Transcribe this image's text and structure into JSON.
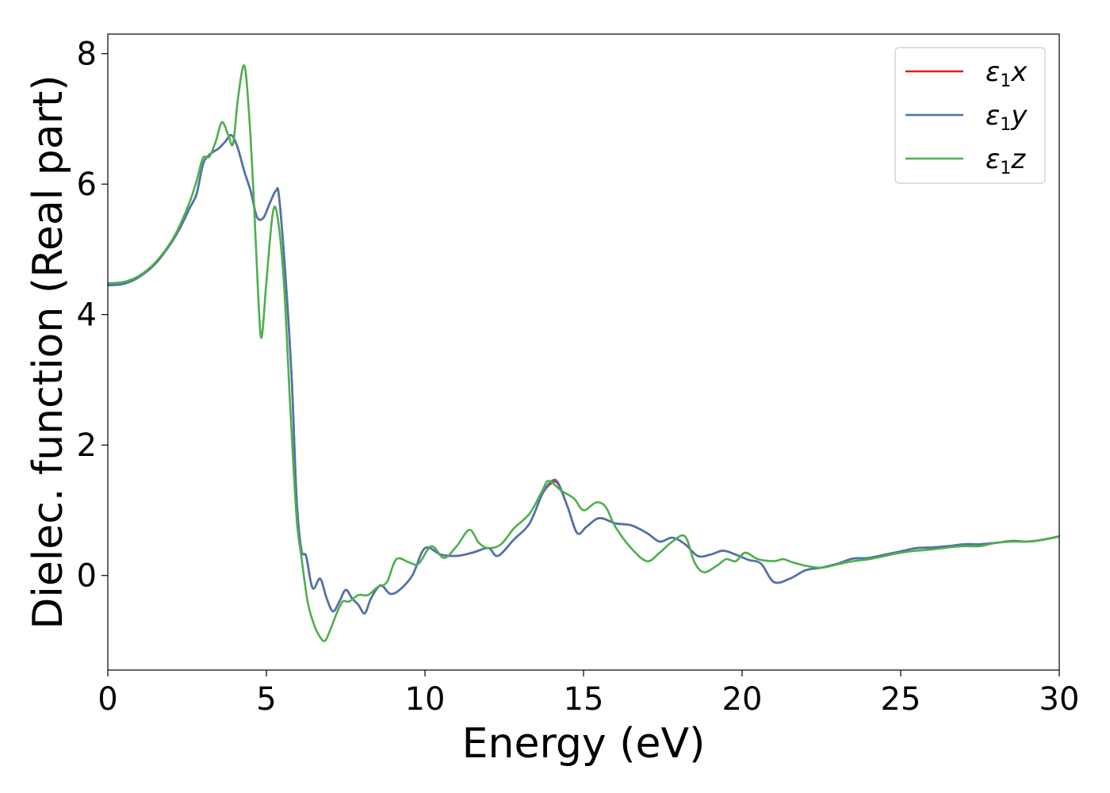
{
  "chart_data": {
    "type": "line",
    "xlabel": "Energy (eV)",
    "ylabel": "Dielec. function (Real part)",
    "xlim": [
      0,
      30
    ],
    "ylim": [
      -1.45,
      8.3
    ],
    "xticks": [
      0,
      5,
      10,
      15,
      20,
      25,
      30
    ],
    "yticks": [
      0,
      2,
      4,
      6,
      8
    ],
    "grid": false,
    "legend_position": "top-right",
    "series": [
      {
        "name": "ε1x",
        "legend": {
          "base": "ε",
          "sub": "1",
          "suffix": "x"
        },
        "color": "#e41a1c",
        "points": [
          [
            0,
            4.45
          ],
          [
            0.5,
            4.47
          ],
          [
            1,
            4.58
          ],
          [
            1.5,
            4.78
          ],
          [
            2,
            5.1
          ],
          [
            2.3,
            5.35
          ],
          [
            2.6,
            5.65
          ],
          [
            2.8,
            5.85
          ],
          [
            3.0,
            6.3
          ],
          [
            3.2,
            6.45
          ],
          [
            3.5,
            6.55
          ],
          [
            3.7,
            6.65
          ],
          [
            3.9,
            6.75
          ],
          [
            4.1,
            6.55
          ],
          [
            4.3,
            6.2
          ],
          [
            4.5,
            5.9
          ],
          [
            4.7,
            5.5
          ],
          [
            4.9,
            5.48
          ],
          [
            5.1,
            5.7
          ],
          [
            5.3,
            5.9
          ],
          [
            5.4,
            5.8
          ],
          [
            5.6,
            4.6
          ],
          [
            5.8,
            3.0
          ],
          [
            5.95,
            1.2
          ],
          [
            6.1,
            0.4
          ],
          [
            6.25,
            0.3
          ],
          [
            6.4,
            -0.1
          ],
          [
            6.5,
            -0.2
          ],
          [
            6.7,
            -0.05
          ],
          [
            6.9,
            -0.35
          ],
          [
            7.1,
            -0.55
          ],
          [
            7.3,
            -0.4
          ],
          [
            7.5,
            -0.22
          ],
          [
            7.7,
            -0.35
          ],
          [
            7.9,
            -0.45
          ],
          [
            8.1,
            -0.58
          ],
          [
            8.3,
            -0.35
          ],
          [
            8.6,
            -0.15
          ],
          [
            8.9,
            -0.28
          ],
          [
            9.2,
            -0.22
          ],
          [
            9.6,
            0.0
          ],
          [
            10.0,
            0.42
          ],
          [
            10.5,
            0.32
          ],
          [
            11.0,
            0.3
          ],
          [
            11.5,
            0.35
          ],
          [
            12.0,
            0.42
          ],
          [
            12.3,
            0.3
          ],
          [
            12.8,
            0.55
          ],
          [
            13.3,
            0.8
          ],
          [
            13.7,
            1.25
          ],
          [
            14.0,
            1.42
          ],
          [
            14.2,
            1.4
          ],
          [
            14.5,
            1.05
          ],
          [
            14.8,
            0.65
          ],
          [
            15.1,
            0.75
          ],
          [
            15.5,
            0.88
          ],
          [
            16.0,
            0.8
          ],
          [
            16.5,
            0.77
          ],
          [
            17.0,
            0.65
          ],
          [
            17.4,
            0.52
          ],
          [
            17.8,
            0.58
          ],
          [
            18.2,
            0.48
          ],
          [
            18.6,
            0.3
          ],
          [
            19.0,
            0.32
          ],
          [
            19.4,
            0.38
          ],
          [
            19.8,
            0.32
          ],
          [
            20.2,
            0.24
          ],
          [
            20.6,
            0.18
          ],
          [
            21.0,
            -0.1
          ],
          [
            21.5,
            -0.05
          ],
          [
            22.0,
            0.08
          ],
          [
            22.5,
            0.12
          ],
          [
            23.0,
            0.18
          ],
          [
            23.5,
            0.26
          ],
          [
            24.0,
            0.27
          ],
          [
            24.5,
            0.32
          ],
          [
            25.0,
            0.37
          ],
          [
            25.5,
            0.42
          ],
          [
            26.0,
            0.43
          ],
          [
            26.5,
            0.45
          ],
          [
            27.0,
            0.48
          ],
          [
            27.5,
            0.48
          ],
          [
            28.0,
            0.5
          ],
          [
            28.5,
            0.53
          ],
          [
            29.0,
            0.52
          ],
          [
            29.5,
            0.55
          ],
          [
            30.0,
            0.6
          ]
        ]
      },
      {
        "name": "ε1y",
        "legend": {
          "base": "ε",
          "sub": "1",
          "suffix": "y"
        },
        "color": "#4a75ad",
        "points": [
          [
            0,
            4.45
          ],
          [
            0.5,
            4.47
          ],
          [
            1,
            4.58
          ],
          [
            1.5,
            4.78
          ],
          [
            2,
            5.1
          ],
          [
            2.3,
            5.35
          ],
          [
            2.6,
            5.65
          ],
          [
            2.8,
            5.85
          ],
          [
            3.0,
            6.3
          ],
          [
            3.2,
            6.45
          ],
          [
            3.5,
            6.55
          ],
          [
            3.7,
            6.65
          ],
          [
            3.9,
            6.75
          ],
          [
            4.1,
            6.55
          ],
          [
            4.3,
            6.2
          ],
          [
            4.5,
            5.9
          ],
          [
            4.7,
            5.5
          ],
          [
            4.9,
            5.48
          ],
          [
            5.1,
            5.7
          ],
          [
            5.3,
            5.9
          ],
          [
            5.4,
            5.8
          ],
          [
            5.6,
            4.6
          ],
          [
            5.8,
            3.0
          ],
          [
            5.95,
            1.2
          ],
          [
            6.1,
            0.4
          ],
          [
            6.25,
            0.3
          ],
          [
            6.4,
            -0.1
          ],
          [
            6.5,
            -0.2
          ],
          [
            6.7,
            -0.05
          ],
          [
            6.9,
            -0.35
          ],
          [
            7.1,
            -0.55
          ],
          [
            7.3,
            -0.4
          ],
          [
            7.5,
            -0.22
          ],
          [
            7.7,
            -0.35
          ],
          [
            7.9,
            -0.45
          ],
          [
            8.1,
            -0.58
          ],
          [
            8.3,
            -0.35
          ],
          [
            8.6,
            -0.15
          ],
          [
            8.9,
            -0.28
          ],
          [
            9.2,
            -0.22
          ],
          [
            9.6,
            0.0
          ],
          [
            10.0,
            0.42
          ],
          [
            10.5,
            0.32
          ],
          [
            11.0,
            0.3
          ],
          [
            11.5,
            0.35
          ],
          [
            12.0,
            0.42
          ],
          [
            12.3,
            0.3
          ],
          [
            12.8,
            0.55
          ],
          [
            13.3,
            0.8
          ],
          [
            13.7,
            1.25
          ],
          [
            14.0,
            1.45
          ],
          [
            14.2,
            1.42
          ],
          [
            14.5,
            1.05
          ],
          [
            14.8,
            0.65
          ],
          [
            15.1,
            0.75
          ],
          [
            15.5,
            0.88
          ],
          [
            16.0,
            0.8
          ],
          [
            16.5,
            0.77
          ],
          [
            17.0,
            0.65
          ],
          [
            17.4,
            0.52
          ],
          [
            17.8,
            0.58
          ],
          [
            18.2,
            0.48
          ],
          [
            18.6,
            0.3
          ],
          [
            19.0,
            0.32
          ],
          [
            19.4,
            0.38
          ],
          [
            19.8,
            0.32
          ],
          [
            20.2,
            0.24
          ],
          [
            20.6,
            0.18
          ],
          [
            21.0,
            -0.1
          ],
          [
            21.5,
            -0.05
          ],
          [
            22.0,
            0.08
          ],
          [
            22.5,
            0.12
          ],
          [
            23.0,
            0.18
          ],
          [
            23.5,
            0.26
          ],
          [
            24.0,
            0.27
          ],
          [
            24.5,
            0.32
          ],
          [
            25.0,
            0.37
          ],
          [
            25.5,
            0.42
          ],
          [
            26.0,
            0.43
          ],
          [
            26.5,
            0.45
          ],
          [
            27.0,
            0.48
          ],
          [
            27.5,
            0.48
          ],
          [
            28.0,
            0.5
          ],
          [
            28.5,
            0.53
          ],
          [
            29.0,
            0.52
          ],
          [
            29.5,
            0.55
          ],
          [
            30.0,
            0.6
          ]
        ]
      },
      {
        "name": "ε1z",
        "legend": {
          "base": "ε",
          "sub": "1",
          "suffix": "z"
        },
        "color": "#4daf4a",
        "points": [
          [
            0,
            4.48
          ],
          [
            0.5,
            4.5
          ],
          [
            1,
            4.6
          ],
          [
            1.5,
            4.8
          ],
          [
            2,
            5.12
          ],
          [
            2.3,
            5.4
          ],
          [
            2.6,
            5.75
          ],
          [
            2.8,
            6.05
          ],
          [
            3.0,
            6.4
          ],
          [
            3.2,
            6.42
          ],
          [
            3.4,
            6.65
          ],
          [
            3.6,
            6.95
          ],
          [
            3.8,
            6.75
          ],
          [
            3.95,
            6.62
          ],
          [
            4.1,
            7.3
          ],
          [
            4.3,
            7.82
          ],
          [
            4.45,
            7.1
          ],
          [
            4.6,
            5.8
          ],
          [
            4.75,
            4.2
          ],
          [
            4.85,
            3.65
          ],
          [
            5.0,
            4.5
          ],
          [
            5.2,
            5.55
          ],
          [
            5.35,
            5.5
          ],
          [
            5.55,
            4.5
          ],
          [
            5.75,
            2.6
          ],
          [
            5.95,
            0.9
          ],
          [
            6.1,
            0.3
          ],
          [
            6.3,
            -0.4
          ],
          [
            6.5,
            -0.75
          ],
          [
            6.7,
            -0.95
          ],
          [
            6.85,
            -1.0
          ],
          [
            7.0,
            -0.85
          ],
          [
            7.2,
            -0.6
          ],
          [
            7.4,
            -0.4
          ],
          [
            7.6,
            -0.4
          ],
          [
            7.9,
            -0.3
          ],
          [
            8.2,
            -0.3
          ],
          [
            8.5,
            -0.18
          ],
          [
            8.8,
            -0.1
          ],
          [
            9.1,
            0.25
          ],
          [
            9.5,
            0.2
          ],
          [
            9.8,
            0.18
          ],
          [
            10.2,
            0.45
          ],
          [
            10.6,
            0.27
          ],
          [
            11.0,
            0.45
          ],
          [
            11.4,
            0.7
          ],
          [
            11.7,
            0.5
          ],
          [
            12.0,
            0.42
          ],
          [
            12.4,
            0.48
          ],
          [
            12.8,
            0.72
          ],
          [
            13.3,
            0.95
          ],
          [
            13.7,
            1.3
          ],
          [
            13.9,
            1.45
          ],
          [
            14.3,
            1.3
          ],
          [
            14.7,
            1.18
          ],
          [
            15.0,
            1.0
          ],
          [
            15.4,
            1.12
          ],
          [
            15.7,
            1.05
          ],
          [
            16.0,
            0.75
          ],
          [
            16.5,
            0.42
          ],
          [
            17.0,
            0.22
          ],
          [
            17.4,
            0.35
          ],
          [
            17.8,
            0.52
          ],
          [
            18.2,
            0.6
          ],
          [
            18.5,
            0.2
          ],
          [
            18.8,
            0.05
          ],
          [
            19.2,
            0.15
          ],
          [
            19.5,
            0.25
          ],
          [
            19.8,
            0.22
          ],
          [
            20.1,
            0.35
          ],
          [
            20.5,
            0.25
          ],
          [
            21.0,
            0.22
          ],
          [
            21.3,
            0.25
          ],
          [
            21.6,
            0.2
          ],
          [
            22.0,
            0.15
          ],
          [
            22.5,
            0.12
          ],
          [
            23.0,
            0.17
          ],
          [
            23.5,
            0.22
          ],
          [
            24.0,
            0.25
          ],
          [
            24.5,
            0.3
          ],
          [
            25.0,
            0.35
          ],
          [
            25.5,
            0.38
          ],
          [
            26.0,
            0.4
          ],
          [
            26.5,
            0.43
          ],
          [
            27.0,
            0.45
          ],
          [
            27.5,
            0.45
          ],
          [
            28.0,
            0.5
          ],
          [
            28.5,
            0.52
          ],
          [
            29.0,
            0.52
          ],
          [
            29.5,
            0.55
          ],
          [
            30.0,
            0.6
          ]
        ]
      }
    ]
  }
}
